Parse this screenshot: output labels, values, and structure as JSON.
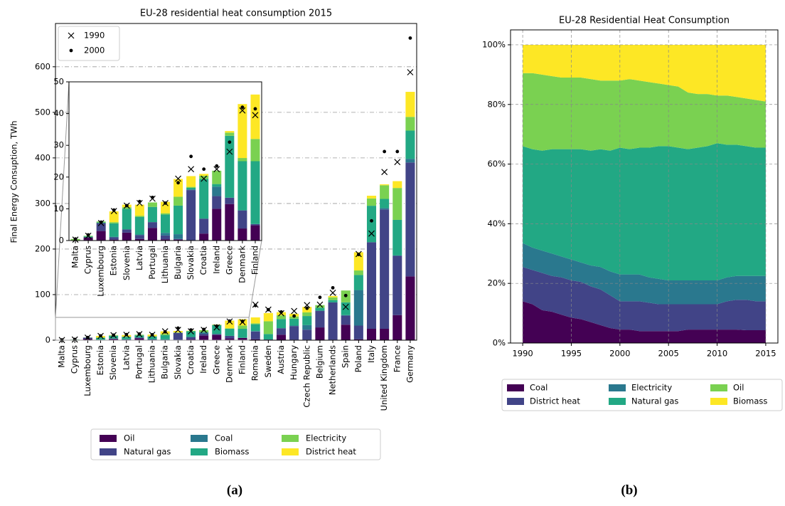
{
  "chart_data": [
    {
      "type": "stacked_bar",
      "title": "EU-28 residential heat consumption 2015",
      "ylabel": "Final Energy Consuption, TWh",
      "caption": "(a)",
      "categories": [
        "Malta",
        "Cyprus",
        "Luxembourg",
        "Estonia",
        "Slovenia",
        "Latvia",
        "Portugal",
        "Lithuania",
        "Bulgaria",
        "Slovakia",
        "Croatia",
        "Ireland",
        "Greece",
        "Denmark",
        "Finland",
        "Romania",
        "Sweden",
        "Austria",
        "Hungary",
        "Czech Republic",
        "Belgium",
        "Netherlands",
        "Spain",
        "Poland",
        "Italy",
        "United Kingdom",
        "France",
        "Germany"
      ],
      "series": [
        {
          "name": "Oil",
          "color": "#440154",
          "values": [
            0,
            1.0,
            3.0,
            0.3,
            2.5,
            0.5,
            4.0,
            0.4,
            0.3,
            0.1,
            2.2,
            10.0,
            11.5,
            3.8,
            4.8,
            2,
            1,
            12,
            1,
            1,
            28,
            1,
            34,
            2,
            25,
            25,
            55,
            140
          ]
        },
        {
          "name": "Natural gas",
          "color": "#414487",
          "values": [
            0,
            0,
            2.5,
            0.7,
            1.0,
            1.2,
            1.8,
            1.2,
            0.2,
            15.8,
            4.7,
            4.0,
            2.0,
            5.7,
            0.4,
            17,
            0.5,
            14,
            30,
            22,
            36,
            82,
            20,
            30,
            190,
            262,
            130,
            250
          ]
        },
        {
          "name": "Coal",
          "color": "#2a788e",
          "values": [
            0,
            0,
            0,
            0.2,
            0,
            0.2,
            0,
            0.8,
            1.5,
            0.2,
            0,
            3.0,
            0,
            0,
            0,
            1,
            0,
            0.5,
            1,
            10,
            1,
            0,
            1,
            78,
            0,
            3,
            1,
            8
          ]
        },
        {
          "name": "Biomass",
          "color": "#22a884",
          "values": [
            0.1,
            0.3,
            0.2,
            4.2,
            6.5,
            5.5,
            4.8,
            5.8,
            9.0,
            0.5,
            12.5,
            0.8,
            19.5,
            15.5,
            19.8,
            15,
            12,
            20,
            15,
            20,
            6,
            5,
            28,
            33,
            80,
            20,
            78,
            62
          ]
        },
        {
          "name": "Electricity",
          "color": "#7ad151",
          "values": [
            0.4,
            0.2,
            0.3,
            0.4,
            0.5,
            0.4,
            1.4,
            0.4,
            2.8,
            0.3,
            1.0,
            4.2,
            1.0,
            1.0,
            7.0,
            2,
            28,
            8,
            5,
            8,
            6,
            6,
            26,
            10,
            16,
            30,
            70,
            30
          ]
        },
        {
          "name": "District heat",
          "color": "#fde725",
          "values": [
            0,
            0,
            0,
            3.4,
            0.8,
            3.5,
            0,
            3.6,
            5.6,
            3.4,
            0.6,
            0,
            0.5,
            17.0,
            14.0,
            13,
            18,
            7,
            6,
            12,
            0,
            3,
            0,
            40,
            6,
            2,
            15,
            55
          ]
        }
      ],
      "markers": [
        {
          "name": "1990",
          "symbol": "x",
          "values": [
            0.3,
            1.5,
            5.5,
            9.3,
            11,
            11.8,
            13.2,
            11.8,
            19.5,
            22.5,
            19.5,
            22.5,
            28,
            41,
            39.5,
            78,
            67,
            59,
            64,
            77,
            78,
            104,
            73,
            189,
            234,
            369,
            391,
            588
          ]
        },
        {
          "name": "2000",
          "symbol": "dot",
          "values": [
            0.5,
            1.8,
            5.8,
            9.6,
            11,
            12.3,
            13.6,
            11.8,
            18.2,
            26.5,
            22.5,
            23.5,
            31,
            42,
            41.5,
            76,
            67,
            62,
            53,
            70,
            94,
            115,
            98,
            188,
            262,
            414,
            414,
            663
          ]
        }
      ],
      "ylim": [
        0,
        695
      ],
      "yticks": [
        0,
        100,
        200,
        300,
        400,
        500,
        600
      ],
      "grid": true,
      "marker_legend": "upper left",
      "legend": "bottom",
      "inset": {
        "xlim": [
          -0.5,
          14.5
        ],
        "ylim": [
          0,
          50
        ],
        "yticks": [
          0,
          10,
          20,
          30,
          40,
          50
        ]
      }
    },
    {
      "type": "stacked_area",
      "title": "EU-28 Residential Heat Consumption",
      "caption": "(b)",
      "x": [
        1990,
        1991,
        1992,
        1993,
        1994,
        1995,
        1996,
        1997,
        1998,
        1999,
        2000,
        2001,
        2002,
        2003,
        2004,
        2005,
        2006,
        2007,
        2008,
        2009,
        2010,
        2011,
        2012,
        2013,
        2014,
        2015
      ],
      "series": [
        {
          "name": "Coal",
          "color": "#440154",
          "values": [
            14,
            13,
            11,
            10.5,
            9.5,
            8.5,
            8,
            7,
            6,
            5,
            4.5,
            4.5,
            4,
            4,
            4,
            4,
            4,
            4.5,
            4.5,
            4.5,
            4.5,
            4.5,
            4.5,
            4.3,
            4.3,
            4.3
          ]
        },
        {
          "name": "District heat",
          "color": "#414487",
          "values": [
            11.5,
            11.5,
            12.5,
            12,
            12.5,
            12.5,
            12.5,
            12,
            12,
            11,
            9.5,
            9.5,
            10,
            9.5,
            9,
            9,
            9,
            8.5,
            8.5,
            8.5,
            8.5,
            9.5,
            10,
            10.2,
            9.7,
            9.7
          ]
        },
        {
          "name": "Electricity",
          "color": "#2a788e",
          "values": [
            8,
            7.5,
            7.5,
            7.5,
            7,
            7,
            6.5,
            7,
            7.5,
            8,
            9,
            9,
            9,
            8.5,
            8.5,
            8,
            8,
            8,
            8,
            8,
            8,
            8,
            8,
            8,
            8.5,
            8.5
          ]
        },
        {
          "name": "Natural gas",
          "color": "#22a884",
          "values": [
            32.5,
            33,
            33.5,
            35,
            36,
            37,
            38,
            38.5,
            39.5,
            40.5,
            42.5,
            42,
            42.5,
            43.5,
            44.5,
            45,
            44.5,
            44,
            44.5,
            45,
            46,
            44.5,
            44,
            43.5,
            43,
            43
          ]
        },
        {
          "name": "Oil",
          "color": "#7ad151",
          "values": [
            24.5,
            25.5,
            25.5,
            24.5,
            24,
            24,
            24,
            24,
            23,
            23.5,
            22.5,
            23.5,
            22.5,
            22,
            21,
            20.5,
            20.5,
            19,
            18,
            17.5,
            16,
            16.5,
            16,
            16,
            16,
            15.5
          ]
        },
        {
          "name": "Biomass",
          "color": "#fde725",
          "values": [
            9.5,
            9.5,
            10,
            10.5,
            11,
            11,
            11,
            11.5,
            12,
            12,
            12,
            11.5,
            12,
            12.5,
            13,
            13.5,
            14,
            16,
            16.5,
            16.5,
            17,
            17,
            17.5,
            18,
            18.5,
            19
          ]
        }
      ],
      "xlim": [
        1988.75,
        2016.25
      ],
      "xticks": [
        1990,
        1995,
        2000,
        2005,
        2010,
        2015
      ],
      "ylim": [
        0,
        105
      ],
      "yticks": [
        {
          "value": 0,
          "label": "0%"
        },
        {
          "value": 20,
          "label": "20%"
        },
        {
          "value": 40,
          "label": "40%"
        },
        {
          "value": 60,
          "label": "60%"
        },
        {
          "value": 80,
          "label": "80%"
        },
        {
          "value": 100,
          "label": "100%"
        }
      ],
      "grid": true,
      "legend": "bottom"
    }
  ]
}
